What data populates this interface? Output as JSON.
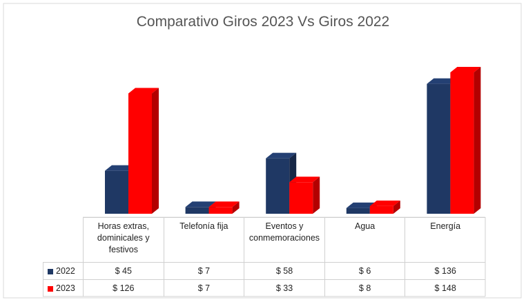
{
  "chart_data": {
    "type": "bar3d",
    "title": "Comparativo Giros 2023 Vs Giros 2022",
    "categories": [
      "Horas extras, dominicales y festivos",
      "Telefonía fija",
      "Eventos y conmemoraciones",
      "Agua",
      "Energía"
    ],
    "series": [
      {
        "name": "2022",
        "color": "#1f3864",
        "values": [
          45,
          7,
          58,
          6,
          136
        ],
        "value_labels": [
          "$ 45",
          "$ 7",
          "$ 58",
          "$ 6",
          "$ 136"
        ]
      },
      {
        "name": "2023",
        "color": "#ff0000",
        "values": [
          126,
          7,
          33,
          8,
          148
        ],
        "value_labels": [
          "$ 126",
          "$ 7",
          "$ 33",
          "$ 8",
          "$ 148"
        ]
      }
    ]
  }
}
